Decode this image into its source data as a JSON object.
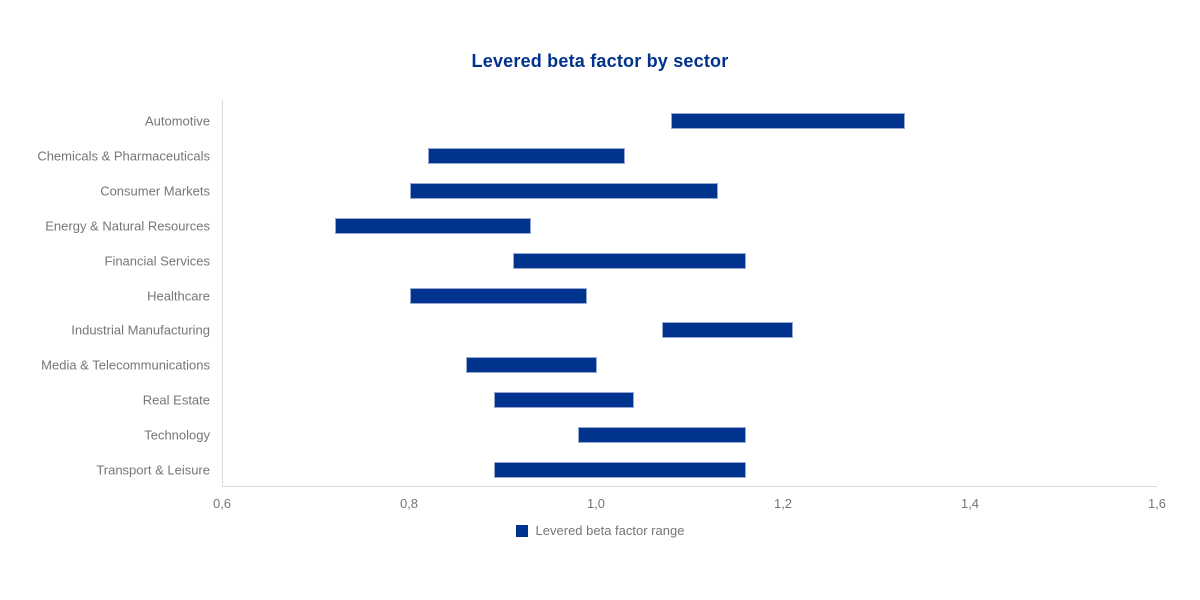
{
  "title": "Levered beta factor by sector",
  "legend": {
    "label": "Levered beta factor range"
  },
  "colors": {
    "bar_fill": "#00338D",
    "bar_border": "#97a9d2",
    "title_text": "#00338D",
    "axis_line": "#d9d9d9",
    "label_text": "#767676"
  },
  "chart_data": {
    "type": "bar",
    "subtype": "horizontal-range-bars",
    "title": "Levered beta factor by sector",
    "xlabel": "",
    "ylabel": "",
    "xlim": [
      0.6,
      1.6
    ],
    "x_tick_values": [
      0.6,
      0.8,
      1.0,
      1.2,
      1.4,
      1.6
    ],
    "x_tick_labels": [
      "0,6",
      "0,8",
      "1,0",
      "1,2",
      "1,4",
      "1,6"
    ],
    "grid": false,
    "legend_position": "bottom",
    "categories": [
      "Automotive",
      "Chemicals & Pharmaceuticals",
      "Consumer Markets",
      "Energy & Natural Resources",
      "Financial Services",
      "Healthcare",
      "Industrial Manufacturing",
      "Media & Telecommunications",
      "Real Estate",
      "Technology",
      "Transport & Leisure"
    ],
    "series": [
      {
        "name": "Levered beta factor range",
        "ranges": [
          {
            "category": "Automotive",
            "low": 1.08,
            "high": 1.33
          },
          {
            "category": "Chemicals & Pharmaceuticals",
            "low": 0.82,
            "high": 1.03
          },
          {
            "category": "Consumer Markets",
            "low": 0.8,
            "high": 1.13
          },
          {
            "category": "Energy & Natural Resources",
            "low": 0.72,
            "high": 0.93
          },
          {
            "category": "Financial Services",
            "low": 0.91,
            "high": 1.16
          },
          {
            "category": "Healthcare",
            "low": 0.8,
            "high": 0.99
          },
          {
            "category": "Industrial Manufacturing",
            "low": 1.07,
            "high": 1.21
          },
          {
            "category": "Media & Telecommunications",
            "low": 0.86,
            "high": 1.0
          },
          {
            "category": "Real Estate",
            "low": 0.89,
            "high": 1.04
          },
          {
            "category": "Technology",
            "low": 0.98,
            "high": 1.16
          },
          {
            "category": "Transport & Leisure",
            "low": 0.89,
            "high": 1.16
          }
        ]
      }
    ]
  }
}
